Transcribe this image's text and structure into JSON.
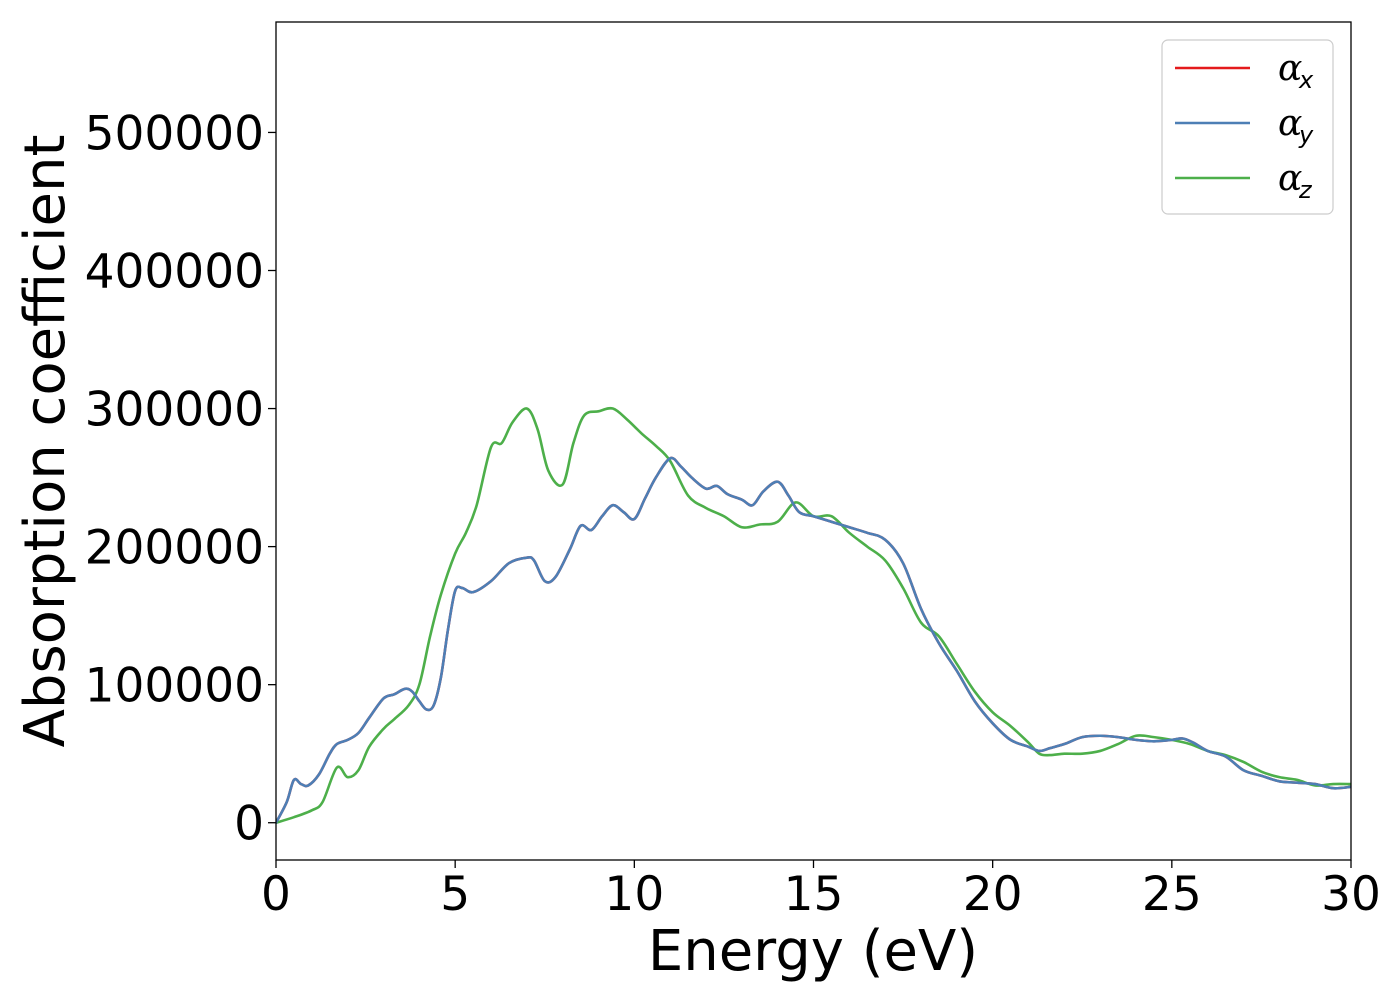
{
  "chart_data": {
    "type": "line",
    "title": "",
    "xlabel": "Energy (eV)",
    "ylabel": "Absorption coefficient",
    "xlim": [
      0,
      30
    ],
    "ylim": [
      -27000,
      580000
    ],
    "xticks": [
      0,
      5,
      10,
      15,
      20,
      25,
      30
    ],
    "xtick_labels": [
      "0",
      "5",
      "10",
      "15",
      "20",
      "25",
      "30"
    ],
    "yticks": [
      0,
      100000,
      200000,
      300000,
      400000,
      500000
    ],
    "ytick_labels": [
      "0",
      "100000",
      "200000",
      "300000",
      "400000",
      "500000"
    ],
    "grid": false,
    "legend_position": "top-right",
    "series": [
      {
        "name": "α",
        "subscript": "x",
        "color": "#e41a1c",
        "x": [
          0,
          0.3,
          0.5,
          0.7,
          0.9,
          1.2,
          1.5,
          1.7,
          2.0,
          2.3,
          2.6,
          3.0,
          3.3,
          3.6,
          3.8,
          4.0,
          4.2,
          4.4,
          4.6,
          4.8,
          5.0,
          5.2,
          5.5,
          6.0,
          6.5,
          7.0,
          7.2,
          7.5,
          7.8,
          8.2,
          8.5,
          8.8,
          9.1,
          9.4,
          9.7,
          10.0,
          10.3,
          10.6,
          11.0,
          11.3,
          11.6,
          12.0,
          12.3,
          12.6,
          13.0,
          13.3,
          13.6,
          14.0,
          14.3,
          14.6,
          15.0,
          15.5,
          16.0,
          16.5,
          17.0,
          17.5,
          18.0,
          18.5,
          19.0,
          19.5,
          20.0,
          20.5,
          21.0,
          21.3,
          21.6,
          22.0,
          22.5,
          23.0,
          23.5,
          24.0,
          24.5,
          25.0,
          25.3,
          25.6,
          26.0,
          26.5,
          27.0,
          27.5,
          28.0,
          28.5,
          29.0,
          29.5,
          30.0
        ],
        "y": [
          0,
          15000,
          31000,
          28000,
          27000,
          35000,
          50000,
          57000,
          60000,
          65000,
          76000,
          90000,
          93000,
          97000,
          95000,
          88000,
          82000,
          85000,
          105000,
          140000,
          168000,
          170000,
          167000,
          175000,
          188000,
          192000,
          190000,
          175000,
          178000,
          198000,
          215000,
          212000,
          222000,
          230000,
          225000,
          220000,
          235000,
          250000,
          264000,
          258000,
          250000,
          242000,
          244000,
          238000,
          234000,
          230000,
          240000,
          247000,
          237000,
          225000,
          222000,
          218000,
          214000,
          210000,
          205000,
          188000,
          155000,
          130000,
          110000,
          88000,
          72000,
          60000,
          55000,
          52000,
          54000,
          57000,
          62000,
          63000,
          62000,
          60000,
          59000,
          60000,
          61000,
          58000,
          52000,
          48000,
          38000,
          34000,
          30000,
          29000,
          28000,
          25000,
          26000
        ]
      },
      {
        "name": "α",
        "subscript": "y",
        "color": "#4d7fb5",
        "x": [
          0,
          0.3,
          0.5,
          0.7,
          0.9,
          1.2,
          1.5,
          1.7,
          2.0,
          2.3,
          2.6,
          3.0,
          3.3,
          3.6,
          3.8,
          4.0,
          4.2,
          4.4,
          4.6,
          4.8,
          5.0,
          5.2,
          5.5,
          6.0,
          6.5,
          7.0,
          7.2,
          7.5,
          7.8,
          8.2,
          8.5,
          8.8,
          9.1,
          9.4,
          9.7,
          10.0,
          10.3,
          10.6,
          11.0,
          11.3,
          11.6,
          12.0,
          12.3,
          12.6,
          13.0,
          13.3,
          13.6,
          14.0,
          14.3,
          14.6,
          15.0,
          15.5,
          16.0,
          16.5,
          17.0,
          17.5,
          18.0,
          18.5,
          19.0,
          19.5,
          20.0,
          20.5,
          21.0,
          21.3,
          21.6,
          22.0,
          22.5,
          23.0,
          23.5,
          24.0,
          24.5,
          25.0,
          25.3,
          25.6,
          26.0,
          26.5,
          27.0,
          27.5,
          28.0,
          28.5,
          29.0,
          29.5,
          30.0
        ],
        "y": [
          0,
          15000,
          31000,
          28000,
          27000,
          35000,
          50000,
          57000,
          60000,
          65000,
          76000,
          90000,
          93000,
          97000,
          95000,
          88000,
          82000,
          85000,
          105000,
          140000,
          168000,
          170000,
          167000,
          175000,
          188000,
          192000,
          190000,
          175000,
          178000,
          198000,
          215000,
          212000,
          222000,
          230000,
          225000,
          220000,
          235000,
          250000,
          264000,
          258000,
          250000,
          242000,
          244000,
          238000,
          234000,
          230000,
          240000,
          247000,
          237000,
          225000,
          222000,
          218000,
          214000,
          210000,
          205000,
          188000,
          155000,
          130000,
          110000,
          88000,
          72000,
          60000,
          55000,
          52000,
          54000,
          57000,
          62000,
          63000,
          62000,
          60000,
          59000,
          60000,
          61000,
          58000,
          52000,
          48000,
          38000,
          34000,
          30000,
          29000,
          28000,
          25000,
          26000
        ]
      },
      {
        "name": "α",
        "subscript": "z",
        "color": "#4daf4a",
        "x": [
          0,
          0.5,
          1.0,
          1.3,
          1.7,
          2.0,
          2.3,
          2.6,
          3.0,
          3.3,
          3.7,
          4.0,
          4.3,
          4.6,
          5.0,
          5.3,
          5.6,
          6.0,
          6.3,
          6.6,
          7.0,
          7.3,
          7.6,
          8.0,
          8.3,
          8.6,
          9.0,
          9.4,
          9.8,
          10.2,
          10.6,
          11.0,
          11.5,
          12.0,
          12.5,
          13.0,
          13.5,
          14.0,
          14.5,
          15.0,
          15.5,
          16.0,
          16.5,
          17.0,
          17.5,
          18.0,
          18.5,
          19.0,
          19.5,
          20.0,
          20.5,
          21.0,
          21.3,
          21.6,
          22.0,
          22.5,
          23.0,
          23.5,
          24.0,
          24.5,
          25.0,
          25.5,
          26.0,
          26.5,
          27.0,
          27.5,
          28.0,
          28.5,
          29.0,
          29.5,
          30.0
        ],
        "y": [
          0,
          4000,
          9000,
          15000,
          40000,
          33000,
          38000,
          55000,
          68000,
          75000,
          85000,
          100000,
          135000,
          165000,
          195000,
          210000,
          230000,
          272000,
          275000,
          290000,
          300000,
          285000,
          255000,
          245000,
          275000,
          295000,
          298000,
          300000,
          292000,
          282000,
          273000,
          262000,
          237000,
          228000,
          222000,
          214000,
          216000,
          218000,
          232000,
          222000,
          222000,
          210000,
          200000,
          190000,
          170000,
          145000,
          135000,
          115000,
          95000,
          80000,
          70000,
          58000,
          50000,
          49000,
          50000,
          50000,
          52000,
          57000,
          63000,
          62000,
          60000,
          57000,
          52000,
          49000,
          44000,
          37000,
          33000,
          31000,
          27000,
          28000,
          28000
        ]
      }
    ]
  }
}
